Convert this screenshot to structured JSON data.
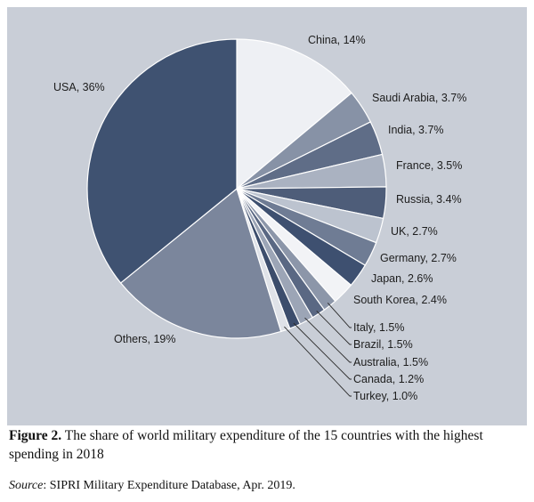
{
  "chart_data": {
    "type": "pie",
    "slices": [
      {
        "label": "China, 14%",
        "value": 14,
        "color": "#eef0f4"
      },
      {
        "label": "Saudi Arabia, 3.7%",
        "value": 3.7,
        "color": "#8792a6"
      },
      {
        "label": "India, 3.7%",
        "value": 3.7,
        "color": "#5f6d87"
      },
      {
        "label": "France, 3.5%",
        "value": 3.5,
        "color": "#aab2c1"
      },
      {
        "label": "Russia, 3.4%",
        "value": 3.4,
        "color": "#4e5d79"
      },
      {
        "label": "UK, 2.7%",
        "value": 2.7,
        "color": "#bcc3cf"
      },
      {
        "label": "Germany, 2.7%",
        "value": 2.7,
        "color": "#6f7c94"
      },
      {
        "label": "Japan, 2.6%",
        "value": 2.6,
        "color": "#3e5070"
      },
      {
        "label": "South Korea, 2.4%",
        "value": 2.4,
        "color": "#f2f3f6"
      },
      {
        "label": "Italy, 1.5%",
        "value": 1.5,
        "color": "#8c96a9"
      },
      {
        "label": "Brazil, 1.5%",
        "value": 1.5,
        "color": "#5a6883"
      },
      {
        "label": "Australia, 1.5%",
        "value": 1.5,
        "color": "#9ca5b6"
      },
      {
        "label": "Canada, 1.2%",
        "value": 1.2,
        "color": "#3c4d6c"
      },
      {
        "label": "Turkey, 1.0%",
        "value": 1.0,
        "color": "#dfe2e8"
      },
      {
        "label": "Others, 19%",
        "value": 19,
        "color": "#7b869c"
      },
      {
        "label": "USA, 36%",
        "value": 36,
        "color": "#3f5271"
      }
    ]
  },
  "caption": {
    "figure_label": "Figure 2.",
    "text": "The share of world military expenditure of the 15 countries with the highest spending in 2018"
  },
  "source": {
    "label": "Source",
    "text": ": SIPRI Military Expenditure Database, Apr. 2019."
  }
}
